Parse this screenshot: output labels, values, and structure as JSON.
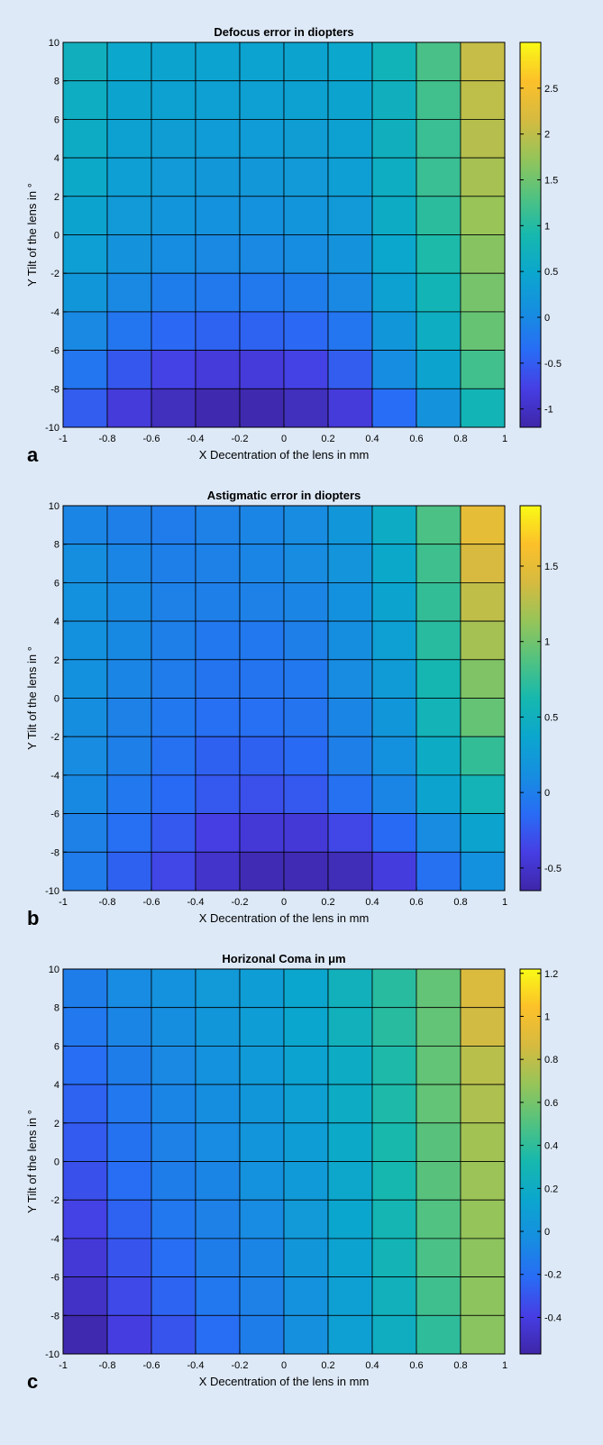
{
  "chart_data": [
    {
      "panel": "a",
      "type": "heatmap",
      "title": "Defocus error in diopters",
      "xlabel": "X Decentration of the lens in mm",
      "ylabel": "Y Tilt of the lens in °",
      "x_ticks": [
        "-1",
        "-0.8",
        "-0.6",
        "-0.4",
        "-0.2",
        "0",
        "0.2",
        "0.4",
        "0.6",
        "0.8",
        "1"
      ],
      "y_ticks": [
        "-10",
        "-8",
        "-6",
        "-4",
        "-2",
        "0",
        "2",
        "4",
        "6",
        "8",
        "10"
      ],
      "xlim": [
        -1,
        1
      ],
      "ylim": [
        -10,
        10
      ],
      "colorbar": {
        "range": [
          -1.2,
          3.0
        ],
        "ticks": [
          -1,
          -0.5,
          0,
          0.5,
          1,
          1.5,
          2,
          2.5
        ],
        "tick_labels": [
          "-1",
          "-0.5",
          "0",
          "0.5",
          "1",
          "1.5",
          "2",
          "2.5"
        ]
      },
      "rows_top_to_bottom": [
        [
          0.7,
          0.5,
          0.45,
          0.42,
          0.42,
          0.45,
          0.5,
          0.75,
          1.25,
          2.05
        ],
        [
          0.65,
          0.45,
          0.4,
          0.37,
          0.37,
          0.4,
          0.45,
          0.7,
          1.2,
          2.0
        ],
        [
          0.6,
          0.4,
          0.33,
          0.3,
          0.3,
          0.33,
          0.4,
          0.7,
          1.15,
          1.95
        ],
        [
          0.55,
          0.35,
          0.27,
          0.22,
          0.22,
          0.27,
          0.35,
          0.65,
          1.15,
          1.85
        ],
        [
          0.45,
          0.27,
          0.18,
          0.13,
          0.13,
          0.18,
          0.27,
          0.6,
          1.05,
          1.75
        ],
        [
          0.35,
          0.15,
          0.05,
          0.0,
          0.0,
          0.05,
          0.15,
          0.5,
          0.95,
          1.65
        ],
        [
          0.2,
          0.0,
          -0.15,
          -0.2,
          -0.2,
          -0.15,
          0.0,
          0.4,
          0.8,
          1.55
        ],
        [
          0.0,
          -0.25,
          -0.4,
          -0.45,
          -0.45,
          -0.4,
          -0.25,
          0.2,
          0.65,
          1.45
        ],
        [
          -0.25,
          -0.55,
          -0.75,
          -0.85,
          -0.85,
          -0.75,
          -0.5,
          0.05,
          0.45,
          1.2
        ],
        [
          -0.5,
          -0.85,
          -1.05,
          -1.15,
          -1.15,
          -1.05,
          -0.85,
          -0.35,
          0.15,
          0.8
        ]
      ]
    },
    {
      "panel": "b",
      "type": "heatmap",
      "title": "Astigmatic error in diopters",
      "xlabel": "X Decentration of the lens in mm",
      "ylabel": "Y Tilt of the lens in °",
      "x_ticks": [
        "-1",
        "-0.8",
        "-0.6",
        "-0.4",
        "-0.2",
        "0",
        "0.2",
        "0.4",
        "0.6",
        "0.8",
        "1"
      ],
      "y_ticks": [
        "-10",
        "-8",
        "-6",
        "-4",
        "-2",
        "0",
        "2",
        "4",
        "6",
        "8",
        "10"
      ],
      "xlim": [
        -1,
        1
      ],
      "ylim": [
        -10,
        10
      ],
      "colorbar": {
        "range": [
          -0.65,
          1.9
        ],
        "ticks": [
          -0.5,
          0,
          0.5,
          1,
          1.5
        ],
        "tick_labels": [
          "-0.5",
          "0",
          "0.5",
          "1",
          "1.5"
        ]
      },
      "rows_top_to_bottom": [
        [
          0.05,
          0.0,
          -0.02,
          0.02,
          0.05,
          0.1,
          0.2,
          0.45,
          0.85,
          1.5
        ],
        [
          0.12,
          0.05,
          0.0,
          0.02,
          0.05,
          0.1,
          0.18,
          0.4,
          0.8,
          1.4
        ],
        [
          0.15,
          0.08,
          0.02,
          0.0,
          0.02,
          0.05,
          0.15,
          0.35,
          0.75,
          1.3
        ],
        [
          0.15,
          0.08,
          0.0,
          -0.05,
          -0.05,
          0.0,
          0.12,
          0.3,
          0.7,
          1.2
        ],
        [
          0.15,
          0.05,
          -0.02,
          -0.08,
          -0.08,
          -0.05,
          0.1,
          0.25,
          0.6,
          1.05
        ],
        [
          0.12,
          0.02,
          -0.05,
          -0.12,
          -0.12,
          -0.08,
          0.05,
          0.2,
          0.55,
          0.95
        ],
        [
          0.1,
          0.0,
          -0.1,
          -0.2,
          -0.2,
          -0.15,
          0.0,
          0.15,
          0.45,
          0.75
        ],
        [
          0.08,
          -0.05,
          -0.15,
          -0.25,
          -0.3,
          -0.25,
          -0.1,
          0.05,
          0.35,
          0.55
        ],
        [
          0.02,
          -0.12,
          -0.25,
          -0.4,
          -0.45,
          -0.45,
          -0.35,
          -0.15,
          0.1,
          0.35
        ],
        [
          -0.02,
          -0.2,
          -0.35,
          -0.5,
          -0.6,
          -0.6,
          -0.58,
          -0.42,
          -0.1,
          0.15
        ]
      ]
    },
    {
      "panel": "c",
      "type": "heatmap",
      "title": "Horizonal Coma in μm",
      "xlabel": "X Decentration of the lens in mm",
      "ylabel": "Y Tilt of the lens in °",
      "x_ticks": [
        "-1",
        "-0.8",
        "-0.6",
        "-0.4",
        "-0.2",
        "0",
        "0.2",
        "0.4",
        "0.6",
        "0.8",
        "1"
      ],
      "y_ticks": [
        "-10",
        "-8",
        "-6",
        "-4",
        "-2",
        "0",
        "2",
        "4",
        "6",
        "8",
        "10"
      ],
      "xlim": [
        -1,
        1
      ],
      "ylim": [
        -10,
        10
      ],
      "colorbar": {
        "range": [
          -0.57,
          1.22
        ],
        "ticks": [
          -0.4,
          -0.2,
          0,
          0.2,
          0.4,
          0.6,
          0.8,
          1,
          1.2
        ],
        "tick_labels": [
          "-0.4",
          "-0.2",
          "0",
          "0.2",
          "0.4",
          "0.6",
          "0.8",
          "1",
          "1.2"
        ]
      },
      "rows_top_to_bottom": [
        [
          -0.12,
          -0.05,
          0.0,
          0.05,
          0.08,
          0.15,
          0.25,
          0.38,
          0.55,
          0.88
        ],
        [
          -0.15,
          -0.08,
          -0.03,
          0.03,
          0.08,
          0.15,
          0.25,
          0.38,
          0.55,
          0.85
        ],
        [
          -0.2,
          -0.12,
          -0.06,
          0.0,
          0.06,
          0.12,
          0.2,
          0.35,
          0.55,
          0.78
        ],
        [
          -0.25,
          -0.15,
          -0.08,
          -0.03,
          0.03,
          0.1,
          0.2,
          0.35,
          0.55,
          0.75
        ],
        [
          -0.28,
          -0.18,
          -0.1,
          -0.05,
          0.02,
          0.08,
          0.18,
          0.33,
          0.52,
          0.72
        ],
        [
          -0.32,
          -0.2,
          -0.12,
          -0.08,
          0.0,
          0.06,
          0.16,
          0.32,
          0.52,
          0.7
        ],
        [
          -0.38,
          -0.25,
          -0.15,
          -0.1,
          -0.05,
          0.05,
          0.15,
          0.3,
          0.5,
          0.68
        ],
        [
          -0.43,
          -0.3,
          -0.2,
          -0.12,
          -0.08,
          0.03,
          0.12,
          0.28,
          0.48,
          0.66
        ],
        [
          -0.48,
          -0.35,
          -0.24,
          -0.15,
          -0.1,
          0.0,
          0.1,
          0.25,
          0.45,
          0.66
        ],
        [
          -0.55,
          -0.4,
          -0.3,
          -0.2,
          -0.12,
          -0.02,
          0.1,
          0.22,
          0.4,
          0.65
        ]
      ]
    }
  ]
}
